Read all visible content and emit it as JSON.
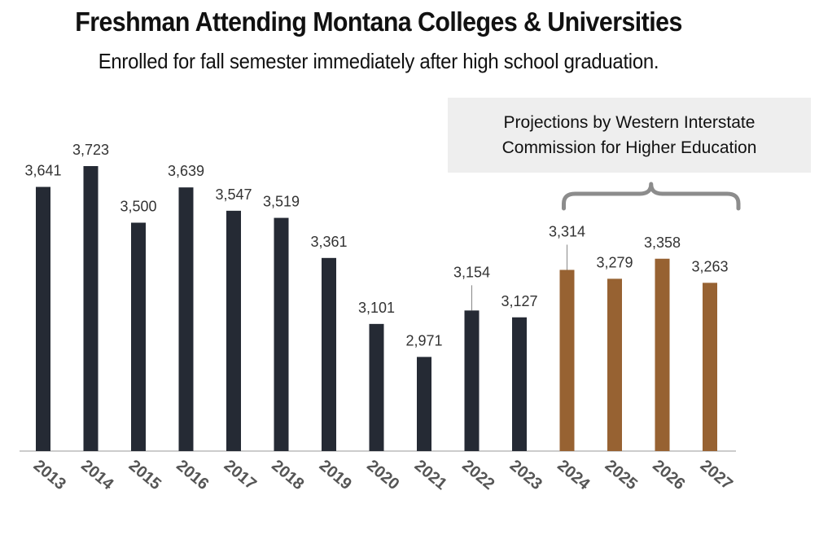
{
  "chart_data": {
    "type": "bar",
    "title": "Freshman Attending Montana Colleges & Universities",
    "subtitle": "Enrolled for fall semester immediately after high school graduation.",
    "categories": [
      "2013",
      "2014",
      "2015",
      "2016",
      "2017",
      "2018",
      "2019",
      "2020",
      "2021",
      "2022",
      "2023",
      "2024",
      "2025",
      "2026",
      "2027"
    ],
    "values": [
      3641,
      3723,
      3500,
      3639,
      3547,
      3519,
      3361,
      3101,
      2971,
      3154,
      3127,
      3314,
      3279,
      3358,
      3263
    ],
    "value_labels": [
      "3,641",
      "3,723",
      "3,500",
      "3,639",
      "3,547",
      "3,519",
      "3,361",
      "3,101",
      "2,971",
      "3,154",
      "3,127",
      "3,314",
      "3,279",
      "3,358",
      "3,263"
    ],
    "projected_from": "2024",
    "ylim": [
      2600,
      3800
    ],
    "grid": false,
    "legend": "none",
    "annotation": {
      "line1": "Projections by Western Interstate",
      "line2": "Commission for Higher Education"
    },
    "colors": {
      "actual": "#252a34",
      "projected": "#976232",
      "label": "#333333",
      "axis": "#cccccc",
      "brace": "#8c8c8c",
      "annotation_bg": "#eeeeee"
    }
  }
}
